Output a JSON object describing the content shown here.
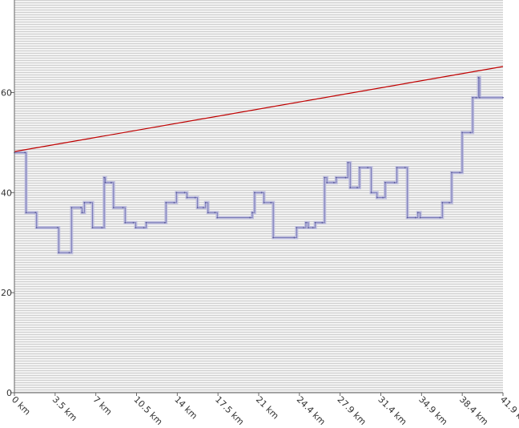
{
  "chart_data": {
    "type": "line",
    "title": "",
    "xlabel": "",
    "ylabel": "",
    "x_ticks": [
      "0 km",
      "3.5 km",
      "7 km",
      "10.5 km",
      "14 km",
      "17.5 km",
      "21 km",
      "24.4 km",
      "27.9 km",
      "31.4 km",
      "34.9 km",
      "38.4 km",
      "41.9 km"
    ],
    "y_ticks": [
      0,
      20,
      40,
      60
    ],
    "xlim": [
      0,
      41.9
    ],
    "ylim": [
      0,
      78.5
    ],
    "grid": true,
    "series": [
      {
        "type": "step",
        "color": "#7a7ab8",
        "points": [
          [
            0,
            48
          ],
          [
            0.9,
            48
          ],
          [
            1.0,
            36
          ],
          [
            1.8,
            36
          ],
          [
            1.9,
            33
          ],
          [
            3.7,
            33
          ],
          [
            3.8,
            28
          ],
          [
            4.7,
            28
          ],
          [
            4.9,
            37
          ],
          [
            5.7,
            37
          ],
          [
            5.8,
            36
          ],
          [
            6.0,
            38
          ],
          [
            6.5,
            38
          ],
          [
            6.7,
            33
          ],
          [
            7.5,
            33
          ],
          [
            7.7,
            43
          ],
          [
            7.8,
            42
          ],
          [
            8.3,
            42
          ],
          [
            8.5,
            37
          ],
          [
            9.3,
            37
          ],
          [
            9.5,
            34
          ],
          [
            10.2,
            34
          ],
          [
            10.4,
            33
          ],
          [
            11.1,
            33
          ],
          [
            11.3,
            34
          ],
          [
            12.9,
            34
          ],
          [
            13.0,
            38
          ],
          [
            13.7,
            38
          ],
          [
            13.9,
            40
          ],
          [
            14.6,
            40
          ],
          [
            14.8,
            39
          ],
          [
            15.5,
            39
          ],
          [
            15.7,
            37
          ],
          [
            16.2,
            37
          ],
          [
            16.4,
            38
          ],
          [
            16.6,
            36
          ],
          [
            17.2,
            36
          ],
          [
            17.4,
            35
          ],
          [
            20.2,
            35
          ],
          [
            20.4,
            36
          ],
          [
            20.6,
            40
          ],
          [
            21.2,
            40
          ],
          [
            21.4,
            38
          ],
          [
            22.0,
            38
          ],
          [
            22.2,
            31
          ],
          [
            24.0,
            31
          ],
          [
            24.2,
            33
          ],
          [
            24.8,
            33
          ],
          [
            25.0,
            34
          ],
          [
            25.2,
            33
          ],
          [
            25.6,
            33
          ],
          [
            25.8,
            34
          ],
          [
            26.4,
            34
          ],
          [
            26.6,
            43
          ],
          [
            26.8,
            42
          ],
          [
            27.4,
            42
          ],
          [
            27.6,
            43
          ],
          [
            28.4,
            43
          ],
          [
            28.6,
            46
          ],
          [
            28.8,
            41
          ],
          [
            29.4,
            41
          ],
          [
            29.6,
            45
          ],
          [
            30.3,
            45
          ],
          [
            30.6,
            40
          ],
          [
            31.1,
            39
          ],
          [
            31.6,
            39
          ],
          [
            31.8,
            42
          ],
          [
            32.6,
            42
          ],
          [
            32.8,
            45
          ],
          [
            33.5,
            45
          ],
          [
            33.7,
            35
          ],
          [
            34.4,
            35
          ],
          [
            34.6,
            36
          ],
          [
            34.8,
            35
          ],
          [
            36.5,
            35
          ],
          [
            36.7,
            38
          ],
          [
            37.3,
            38
          ],
          [
            37.5,
            44
          ],
          [
            38.2,
            44
          ],
          [
            38.4,
            52
          ],
          [
            39.1,
            52
          ],
          [
            39.3,
            59
          ],
          [
            39.6,
            59
          ],
          [
            39.8,
            63
          ],
          [
            39.9,
            59
          ],
          [
            41.9,
            59
          ]
        ]
      },
      {
        "type": "line",
        "color": "#c00000",
        "points": [
          [
            0,
            48.2
          ],
          [
            41.9,
            65.2
          ]
        ]
      }
    ]
  }
}
